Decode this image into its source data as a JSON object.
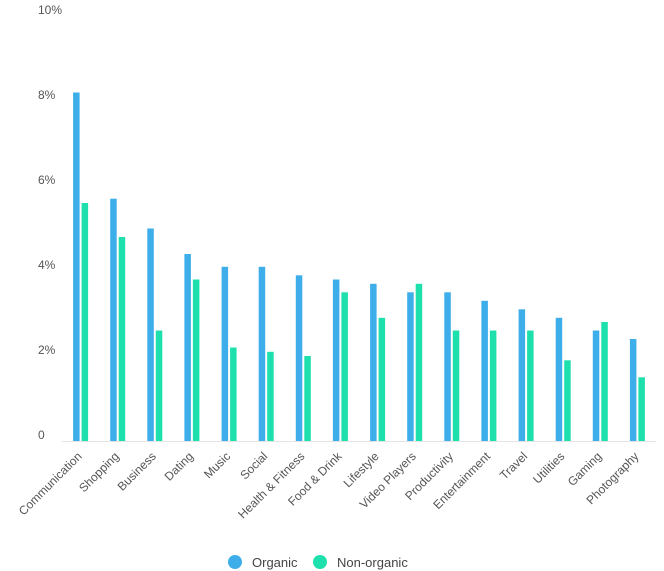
{
  "chart_data": {
    "type": "bar",
    "categories": [
      "Communication",
      "Shopping",
      "Business",
      "Dating",
      "Music",
      "Social",
      "Health & Fitness",
      "Food & Drink",
      "Lifestyle",
      "Video Players",
      "Productivity",
      "Entertainment",
      "Travel",
      "Utilities",
      "Gaming",
      "Photography"
    ],
    "series": [
      {
        "name": "Organic",
        "color": "#3daee9",
        "values": [
          8.2,
          5.7,
          5.0,
          4.4,
          4.1,
          4.1,
          3.9,
          3.8,
          3.7,
          3.5,
          3.5,
          3.3,
          3.1,
          2.9,
          2.6,
          2.4
        ]
      },
      {
        "name": "Non-organic",
        "color": "#1ee0ad",
        "values": [
          5.6,
          4.8,
          2.6,
          3.8,
          2.2,
          2.1,
          2.0,
          3.5,
          2.9,
          3.7,
          2.6,
          2.6,
          2.6,
          1.9,
          2.8,
          1.5
        ]
      }
    ],
    "yticks": [
      "0",
      "2%",
      "4%",
      "6%",
      "8%",
      "10%"
    ],
    "ylim": [
      0,
      10
    ],
    "legend_position": "bottom-center"
  }
}
